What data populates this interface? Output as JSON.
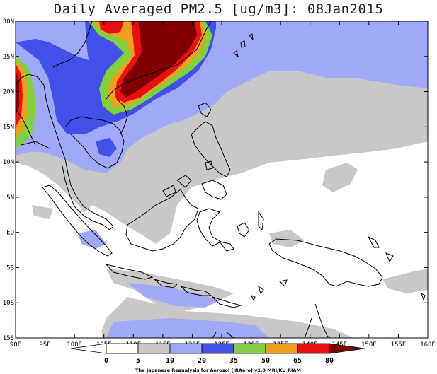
{
  "title": "Daily Averaged PM2.5 [ug/m3]: 08Jan2015",
  "lat_ticks": [
    "30N",
    "25N",
    "20N",
    "15N",
    "10N",
    "5N",
    "EQ",
    "5S",
    "10S",
    "15S"
  ],
  "lon_ticks": [
    "90E",
    "95E",
    "100E",
    "105E",
    "110E",
    "115E",
    "120E",
    "125E",
    "130E",
    "135E",
    "140E",
    "145E",
    "150E",
    "155E",
    "160E"
  ],
  "extent": {
    "lon": [
      90,
      160
    ],
    "lat": [
      -15,
      30
    ]
  },
  "colorbar": {
    "labels": [
      "0",
      "5",
      "10",
      "20",
      "35",
      "50",
      "65",
      "80"
    ],
    "colors": [
      "#ffffff",
      "#ffffff",
      "#c8c8c8",
      "#a0a8f8",
      "#4050e8",
      "#80d040",
      "#f0a020",
      "#e81010",
      "#800000"
    ]
  },
  "credit": "The Japanese Reanalysis for Aerosol (JRAero) v1.0 MRI/KU RIAM"
}
